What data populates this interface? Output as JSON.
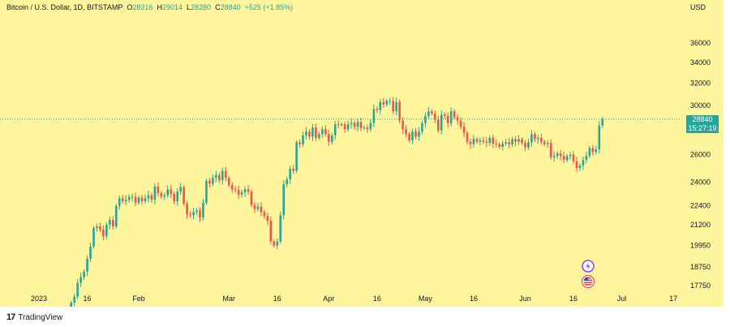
{
  "header": {
    "symbol": "Bitcoin / U.S. Dollar, 1D, BITSTAMP",
    "o_label": "O",
    "o_value": "28316",
    "h_label": "H",
    "h_value": "29014",
    "l_label": "L",
    "l_value": "28280",
    "c_label": "C",
    "c_value": "28840",
    "change": "+525 (+1.85%)"
  },
  "currency": "USD",
  "price_tag": {
    "price": "28840",
    "countdown": "15:27:19"
  },
  "footer": {
    "logo": "17",
    "brand": "TradingView"
  },
  "colors": {
    "background": "#fff59d",
    "up": "#26a69a",
    "down": "#ef5350",
    "text": "#131722"
  },
  "icons": [
    "lightning-icon",
    "us-flag-icon"
  ],
  "chart_data": {
    "type": "candlestick",
    "x_ticks": [
      {
        "label": "2023",
        "day": 0
      },
      {
        "label": "16",
        "day": 15
      },
      {
        "label": "Feb",
        "day": 31
      },
      {
        "label": "Mar",
        "day": 59
      },
      {
        "label": "16",
        "day": 74
      },
      {
        "label": "Apr",
        "day": 90
      },
      {
        "label": "16",
        "day": 105
      },
      {
        "label": "May",
        "day": 120
      },
      {
        "label": "16",
        "day": 135
      },
      {
        "label": "Jun",
        "day": 151
      },
      {
        "label": "16",
        "day": 166
      },
      {
        "label": "Jul",
        "day": 181
      },
      {
        "label": "17",
        "day": 197
      }
    ],
    "y_ticks": [
      17750,
      18750,
      19950,
      21200,
      22400,
      24000,
      26000,
      28000,
      30000,
      32000,
      34000,
      36000
    ],
    "y_scale": "log",
    "current_price": 28840,
    "closes": [
      16900,
      17200,
      17900,
      18200,
      18500,
      19200,
      19900,
      21000,
      21100,
      20900,
      20500,
      21200,
      21500,
      21100,
      22400,
      22900,
      22700,
      22800,
      23000,
      23000,
      22600,
      22950,
      22700,
      22900,
      23100,
      22800,
      23700,
      23250,
      23000,
      23100,
      23500,
      23200,
      22700,
      23350,
      23650,
      22550,
      21850,
      21800,
      22000,
      22100,
      21650,
      22600,
      24100,
      23900,
      24300,
      24500,
      24150,
      24800,
      24300,
      23800,
      23500,
      23450,
      23150,
      23300,
      23500,
      23350,
      22450,
      22200,
      22350,
      22000,
      21750,
      21450,
      20200,
      19950,
      20200,
      21800,
      23850,
      24200,
      24950,
      24800,
      26950,
      26800,
      27500,
      27800,
      27400,
      28150,
      27300,
      27600,
      28000,
      27600,
      27000,
      27500,
      28400,
      28350,
      28400,
      28000,
      28400,
      28500,
      28200,
      28600,
      28100,
      28150,
      28000,
      28500,
      29700,
      29600,
      30300,
      30100,
      30400,
      30400,
      29500,
      30300,
      28700,
      28000,
      27600,
      27100,
      27800,
      27400,
      27800,
      28500,
      29100,
      29500,
      29300,
      28800,
      27900,
      29200,
      29100,
      28500,
      29500,
      29000,
      28700,
      28200,
      27700,
      27000,
      26800,
      27200,
      27000,
      27100,
      27000,
      26900,
      27300,
      26850,
      26800,
      26600,
      26850,
      26950,
      26800,
      27200,
      27000,
      27200,
      26900,
      26550,
      26950,
      27600,
      27200,
      27300,
      27000,
      26800,
      26900,
      25800,
      25900,
      26100,
      25900,
      25600,
      25900,
      26000,
      25500,
      25000,
      25200,
      25600,
      25900,
      26500,
      26200,
      26400,
      28300,
      28840
    ]
  }
}
